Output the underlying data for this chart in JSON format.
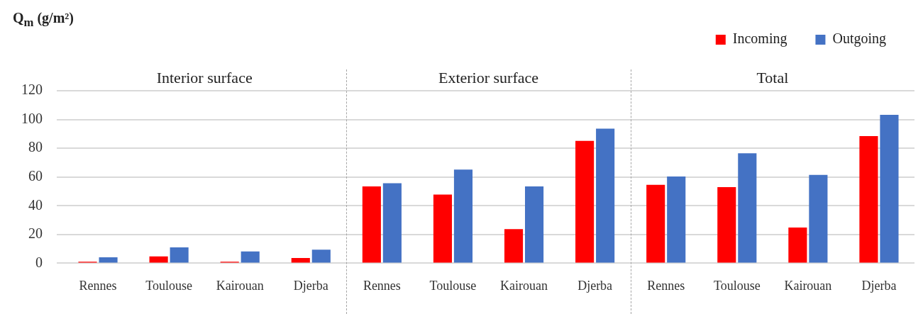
{
  "chart_data": {
    "type": "bar",
    "ylabel": "Q$_{m}$ (g/m²)",
    "categories": [
      "Rennes",
      "Toulouse",
      "Kairouan",
      "Djerba",
      "Rennes",
      "Toulouse",
      "Kairouan",
      "Djerba",
      "Rennes",
      "Toulouse",
      "Kairouan",
      "Djerba"
    ],
    "series": [
      {
        "name": "Incoming",
        "color": "#ff0000",
        "values": [
          1,
          4.8,
          1,
          3.7,
          53.5,
          47.8,
          23.8,
          85.1,
          54.5,
          53,
          24.8,
          88.4
        ]
      },
      {
        "name": "Outgoing",
        "color": "#4472c4",
        "values": [
          4.2,
          11,
          8.2,
          9.4,
          55.7,
          65.2,
          53.5,
          93.6,
          60.4,
          76.5,
          61.5,
          103.2
        ]
      }
    ],
    "annotations": [
      "Interior surface",
      "Exterior surface",
      "Total"
    ],
    "ylim": [
      0,
      120
    ],
    "yticks": [
      0,
      20,
      40,
      60,
      80,
      100,
      120
    ],
    "grid": "y",
    "legend": "top right"
  }
}
